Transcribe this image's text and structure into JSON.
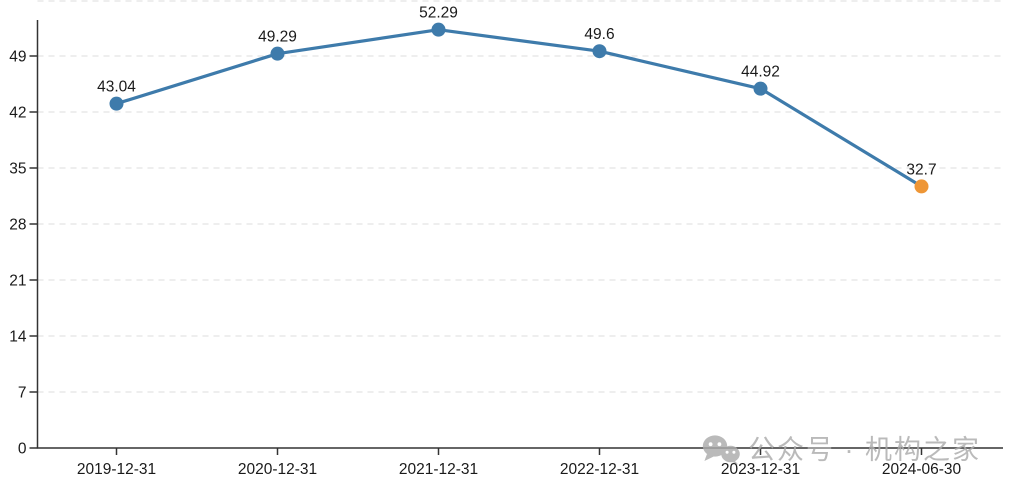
{
  "chart_data": {
    "type": "line",
    "title": "",
    "xlabel": "",
    "ylabel": "",
    "x": [
      "2019-12-31",
      "2020-12-31",
      "2021-12-31",
      "2022-12-31",
      "2023-12-31",
      "2024-06-30"
    ],
    "values": [
      43.04,
      49.29,
      52.29,
      49.6,
      44.92,
      32.7
    ],
    "point_labels": [
      "43.04",
      "49.29",
      "52.29",
      "49.6",
      "44.92",
      "32.7"
    ],
    "ylim": [
      0,
      56
    ],
    "yticks": [
      0,
      7,
      14,
      21,
      28,
      35,
      42,
      49,
      56
    ],
    "grid": "horizontal-dashed",
    "legend": "none",
    "line_color": "#3e7bab",
    "point_colors": [
      "#3e7bab",
      "#3e7bab",
      "#3e7bab",
      "#3e7bab",
      "#3e7bab",
      "#ee9636"
    ],
    "grid_color": "#dcdcdc",
    "axis_color": "#333333",
    "label_color": "#1a1a1a"
  },
  "watermark": {
    "icon": "wechat-icon",
    "text": "公众号 · 机构之家",
    "color": "#ababab"
  }
}
